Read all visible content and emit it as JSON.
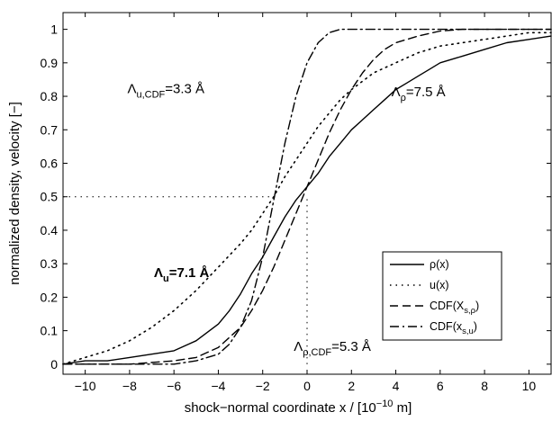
{
  "chart_data": {
    "type": "line",
    "xlabel_parts": {
      "main": "shock−normal coordinate x / [10",
      "sup": "−10",
      "tail": " m]"
    },
    "ylabel": "normalized density, velocity [−]",
    "xlim": [
      -11,
      11
    ],
    "ylim": [
      -0.03,
      1.05
    ],
    "xticks": [
      -10,
      -8,
      -6,
      -4,
      -2,
      0,
      2,
      4,
      6,
      8,
      10
    ],
    "xtick_labels": [
      "−10",
      "−8",
      "−6",
      "−4",
      "−2",
      "0",
      "2",
      "4",
      "6",
      "8",
      "10"
    ],
    "yticks": [
      0,
      0.1,
      0.2,
      0.3,
      0.4,
      0.5,
      0.6,
      0.7,
      0.8,
      0.9,
      1
    ],
    "ytick_labels": [
      "0",
      "0.1",
      "0.2",
      "0.3",
      "0.4",
      "0.5",
      "0.6",
      "0.7",
      "0.8",
      "0.9",
      "1"
    ],
    "grid": false,
    "legend_position": "bottom-right",
    "series": [
      {
        "name": "ρ(x)",
        "style": "solid",
        "x": [
          -11,
          -10,
          -9,
          -8,
          -7,
          -6,
          -5,
          -4,
          -3.5,
          -3,
          -2.5,
          -2,
          -1.5,
          -1,
          -0.5,
          0,
          0.5,
          1,
          1.5,
          2,
          2.5,
          3,
          3.5,
          4,
          4.5,
          5,
          5.5,
          6,
          7,
          8,
          9,
          10,
          11
        ],
        "y": [
          0.0,
          0.01,
          0.01,
          0.02,
          0.03,
          0.04,
          0.07,
          0.12,
          0.16,
          0.21,
          0.27,
          0.32,
          0.38,
          0.44,
          0.49,
          0.53,
          0.57,
          0.62,
          0.66,
          0.7,
          0.73,
          0.76,
          0.79,
          0.82,
          0.84,
          0.86,
          0.88,
          0.9,
          0.92,
          0.94,
          0.96,
          0.97,
          0.98
        ]
      },
      {
        "name": "u(x)",
        "style": "dotted",
        "x": [
          -11,
          -10,
          -9,
          -8,
          -7,
          -6,
          -5,
          -4,
          -3,
          -2.5,
          -2,
          -1.5,
          -1,
          -0.5,
          0,
          0.5,
          1,
          1.5,
          2,
          3,
          4,
          5,
          6,
          7,
          8,
          9,
          10,
          11
        ],
        "y": [
          0.0,
          0.02,
          0.04,
          0.07,
          0.11,
          0.16,
          0.22,
          0.29,
          0.36,
          0.4,
          0.45,
          0.5,
          0.56,
          0.61,
          0.66,
          0.71,
          0.75,
          0.79,
          0.82,
          0.87,
          0.9,
          0.93,
          0.95,
          0.96,
          0.97,
          0.98,
          0.99,
          0.99
        ]
      },
      {
        "name": "CDF(X_s,ρ)",
        "style": "dashed",
        "x": [
          -11,
          -8,
          -6,
          -5,
          -4,
          -3,
          -2.5,
          -2,
          -1.5,
          -1,
          -0.5,
          0,
          0.5,
          1,
          1.5,
          2,
          2.5,
          3,
          3.5,
          4,
          5,
          6,
          7,
          8,
          11
        ],
        "y": [
          0.0,
          0.0,
          0.01,
          0.02,
          0.05,
          0.11,
          0.16,
          0.22,
          0.29,
          0.37,
          0.45,
          0.53,
          0.61,
          0.69,
          0.76,
          0.82,
          0.87,
          0.91,
          0.94,
          0.96,
          0.98,
          0.995,
          1.0,
          1.0,
          1.0
        ]
      },
      {
        "name": "CDF(x_s,u)",
        "style": "dashdot",
        "x": [
          -11,
          -6,
          -5,
          -4,
          -3.5,
          -3,
          -2.5,
          -2,
          -1.5,
          -1,
          -0.5,
          0,
          0.5,
          1,
          1.5,
          2,
          3,
          11
        ],
        "y": [
          0.0,
          0.0,
          0.01,
          0.03,
          0.06,
          0.11,
          0.19,
          0.32,
          0.49,
          0.66,
          0.8,
          0.9,
          0.96,
          0.99,
          1.0,
          1.0,
          1.0,
          1.0
        ]
      }
    ],
    "reference_lines": {
      "horizontal": {
        "y": 0.5,
        "x_from": -11,
        "x_to": -1.4
      },
      "vertical": {
        "x": 0,
        "y_from": 0,
        "y_to": 0.5
      }
    },
    "annotations": [
      {
        "id": "lambda-u-cdf",
        "base": "Λ",
        "sub": "u,CDF",
        "rest": "=3.3 Å",
        "x": -8.1,
        "y": 0.81,
        "bold": false
      },
      {
        "id": "lambda-rho",
        "base": "Λ",
        "sub": "ρ",
        "rest": "=7.5 Å",
        "x": 3.8,
        "y": 0.8,
        "bold": false
      },
      {
        "id": "lambda-u",
        "base": "Λ",
        "sub": "u",
        "rest": "=7.1 Å",
        "x": -6.9,
        "y": 0.26,
        "bold": true
      },
      {
        "id": "lambda-rho-cdf",
        "base": "Λ",
        "sub": "ρ,CDF",
        "rest": "=5.3 Å",
        "x": -0.6,
        "y": 0.04,
        "bold": false
      }
    ],
    "legend": [
      {
        "base": "ρ(x)",
        "sub": "",
        "tail": "",
        "style": "solid"
      },
      {
        "base": "u(x)",
        "sub": "",
        "tail": "",
        "style": "dotted"
      },
      {
        "base": "CDF(X",
        "sub": "s,ρ",
        "tail": ")",
        "style": "dashed"
      },
      {
        "base": "CDF(x",
        "sub": "s,u",
        "tail": ")",
        "style": "dashdot"
      }
    ]
  }
}
